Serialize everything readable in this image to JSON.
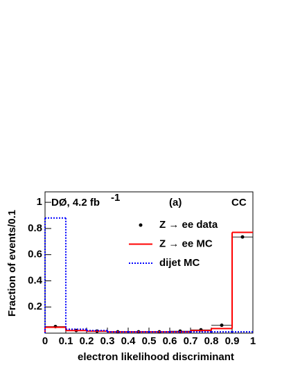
{
  "chart_data": {
    "type": "histogram",
    "xlabel": "electron likelihood discriminant",
    "ylabel": "Fraction of events/0.1",
    "annotations": [
      "DØ, 4.2 fb",
      "-1",
      "(a)",
      "CC"
    ],
    "bins": [
      0,
      0.1,
      0.2,
      0.3,
      0.4,
      0.5,
      0.6,
      0.7,
      0.8,
      0.9,
      1
    ],
    "series": [
      {
        "name": "Z → ee data",
        "color": "#000000",
        "style": "points",
        "values": [
          0.05,
          0.02,
          0.015,
          0.01,
          0.01,
          0.01,
          0.015,
          0.025,
          0.06,
          0.735
        ]
      },
      {
        "name": "Z → ee MC",
        "color": "#ff0000",
        "style": "step",
        "values": [
          0.045,
          0.02,
          0.015,
          0.01,
          0.01,
          0.01,
          0.01,
          0.02,
          0.035,
          0.77
        ]
      },
      {
        "name": "dijet MC",
        "color": "#0000ff",
        "style": "dotted-step",
        "values": [
          0.88,
          0.03,
          0.02,
          0.01,
          0.01,
          0.01,
          0.01,
          0.01,
          0.01,
          0.01
        ]
      }
    ],
    "xlim": [
      0,
      1
    ],
    "ylim": [
      0,
      1.08
    ],
    "xticks": [
      0,
      0.1,
      0.2,
      0.3,
      0.4,
      0.5,
      0.6,
      0.7,
      0.8,
      0.9,
      1
    ],
    "yticks": [
      0.2,
      0.4,
      0.6,
      0.8,
      1
    ]
  }
}
